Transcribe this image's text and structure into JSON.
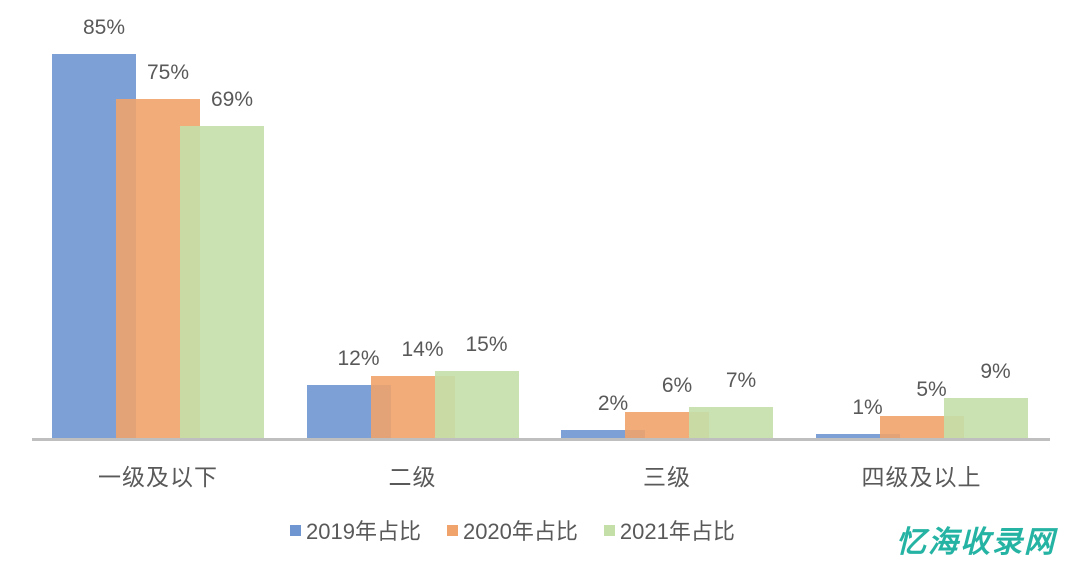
{
  "chart_data": {
    "type": "bar",
    "title": "",
    "xlabel": "",
    "ylabel": "",
    "ylim": [
      0,
      90
    ],
    "grid": false,
    "legend_position": "bottom",
    "categories": [
      "一级及以下",
      "二级",
      "三级",
      "四级及以上"
    ],
    "series": [
      {
        "name": "2019年占比",
        "color": "#6f96d1",
        "values": [
          85,
          12,
          2,
          1
        ],
        "labels": [
          "85%",
          "12%",
          "2%",
          "1%"
        ]
      },
      {
        "name": "2020年占比",
        "color": "#f0a36b",
        "values": [
          75,
          14,
          6,
          5
        ],
        "labels": [
          "75%",
          "14%",
          "6%",
          "5%"
        ]
      },
      {
        "name": "2021年占比",
        "color": "#c4dfa8",
        "values": [
          69,
          15,
          7,
          9
        ],
        "labels": [
          "69%",
          "15%",
          "7%",
          "9%"
        ]
      }
    ]
  },
  "watermark": "忆海收录网"
}
